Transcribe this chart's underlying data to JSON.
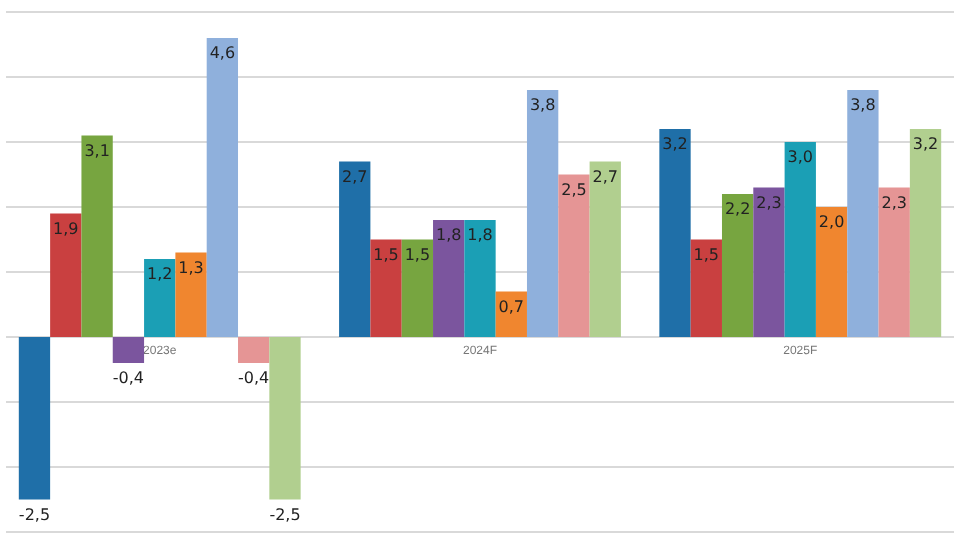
{
  "chart_data": {
    "type": "bar",
    "categories": [
      "2023e",
      "2024F",
      "2025F"
    ],
    "series": [
      {
        "color": "#1f6fa8",
        "values": [
          -2.5,
          2.7,
          3.2
        ],
        "value_labels": [
          "-2,5",
          "2,7",
          "3,2"
        ]
      },
      {
        "color": "#c94040",
        "values": [
          1.9,
          1.5,
          1.5
        ],
        "value_labels": [
          "1,9",
          "1,5",
          "1,5"
        ]
      },
      {
        "color": "#77a540",
        "values": [
          3.1,
          1.5,
          2.2
        ],
        "value_labels": [
          "3,1",
          "1,5",
          "2,2"
        ]
      },
      {
        "color": "#7b559e",
        "values": [
          -0.4,
          1.8,
          2.3
        ],
        "value_labels": [
          "-0,4",
          "1,8",
          "2,3"
        ]
      },
      {
        "color": "#1b9fb5",
        "values": [
          1.2,
          1.8,
          3.0
        ],
        "value_labels": [
          "1,2",
          "1,8",
          "3,0"
        ]
      },
      {
        "color": "#f0862f",
        "values": [
          1.3,
          0.7,
          2.0
        ],
        "value_labels": [
          "1,3",
          "0,7",
          "2,0"
        ]
      },
      {
        "color": "#8fb0dc",
        "values": [
          4.6,
          3.8,
          3.8
        ],
        "value_labels": [
          "4,6",
          "3,8",
          "3,8"
        ]
      },
      {
        "color": "#e59595",
        "values": [
          -0.4,
          2.5,
          2.3
        ],
        "value_labels": [
          "-0,4",
          "2,5",
          "2,3"
        ]
      },
      {
        "color": "#b1cf8f",
        "values": [
          -2.5,
          2.7,
          3.2
        ],
        "value_labels": [
          "-2,5",
          "2,7",
          "3,2"
        ]
      }
    ],
    "ylim": [
      -3,
      5
    ],
    "yticks": [
      -3,
      -2,
      -1,
      0,
      1,
      2,
      3,
      4,
      5
    ],
    "grid": true,
    "tick_labels": "x"
  }
}
